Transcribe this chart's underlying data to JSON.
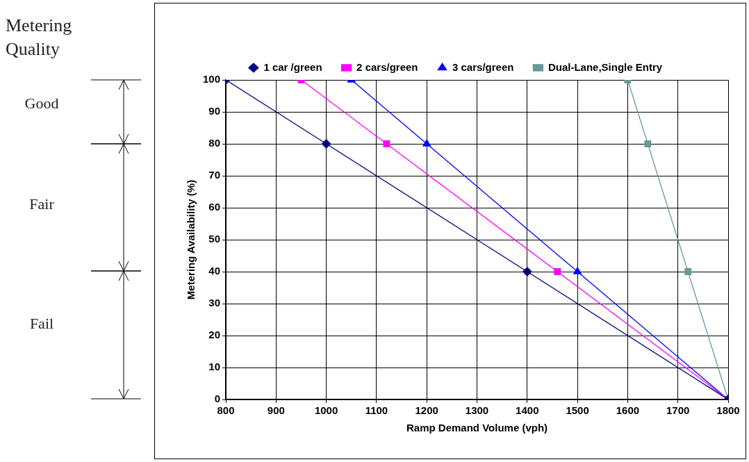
{
  "chart_data": {
    "type": "line",
    "xlabel": "Ramp Demand Volume (vph)",
    "ylabel": "Metering Availability (%)",
    "series": [
      {
        "name": "1 car /green",
        "color": "#000080",
        "marker": "diamond",
        "x": [
          800,
          1000,
          1400,
          1800
        ],
        "values": [
          100,
          80,
          40,
          0
        ]
      },
      {
        "name": "2 cars/green",
        "color": "#ff00ff",
        "marker": "square",
        "x": [
          950,
          1120,
          1460,
          1800
        ],
        "values": [
          100,
          80,
          40,
          0
        ]
      },
      {
        "name": "3 cars/green",
        "color": "#0000ff",
        "marker": "triangle",
        "x": [
          1050,
          1200,
          1500,
          1800
        ],
        "values": [
          100,
          80,
          40,
          0
        ]
      },
      {
        "name": "Dual-Lane,Single Entry",
        "color": "#669999",
        "marker": "square",
        "x": [
          1600,
          1640,
          1720,
          1800
        ],
        "values": [
          100,
          80,
          40,
          0
        ]
      }
    ],
    "xlim": [
      800,
      1800
    ],
    "xticks": [
      800,
      900,
      1000,
      1100,
      1200,
      1300,
      1400,
      1500,
      1600,
      1700,
      1800
    ],
    "ylim": [
      0,
      100
    ],
    "yticks": [
      0,
      10,
      20,
      30,
      40,
      50,
      60,
      70,
      80,
      90,
      100
    ],
    "annotations": [
      "Metering Quality",
      "Good",
      "Fair",
      "Fail"
    ],
    "grid": true,
    "legend": "top",
    "line_style": "solid"
  }
}
